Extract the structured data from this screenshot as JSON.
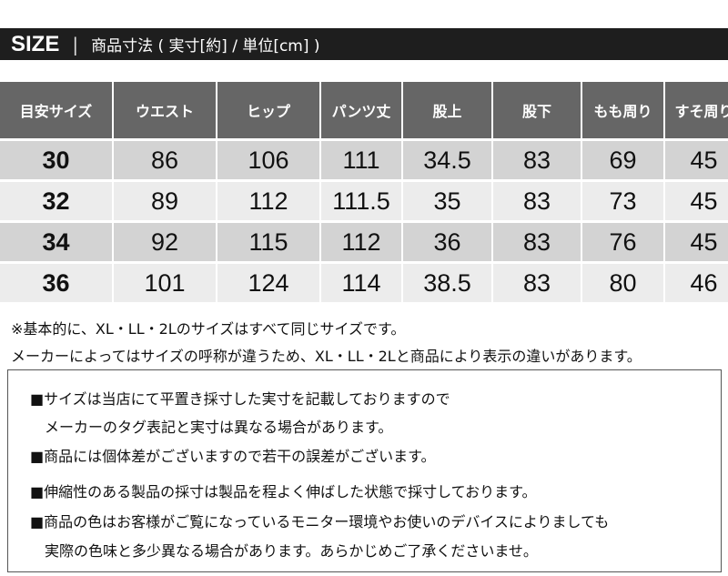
{
  "header": {
    "title": "SIZE",
    "separator": "|",
    "subtitle": "商品寸法 ( 実寸[約] / 単位[cm] )"
  },
  "table": {
    "columns": [
      "目安サイズ",
      "ウエスト",
      "ヒップ",
      "パンツ丈",
      "股上",
      "股下",
      "もも周り",
      "すそ周り"
    ],
    "rows": [
      [
        "30",
        "86",
        "106",
        "111",
        "34.5",
        "83",
        "69",
        "45"
      ],
      [
        "32",
        "89",
        "112",
        "111.5",
        "35",
        "83",
        "73",
        "45"
      ],
      [
        "34",
        "92",
        "115",
        "112",
        "36",
        "83",
        "76",
        "45"
      ],
      [
        "36",
        "101",
        "124",
        "114",
        "38.5",
        "83",
        "80",
        "46"
      ]
    ]
  },
  "notes": [
    "※基本的に、XL・LL・2Lのサイズはすべて同じサイズです。",
    "メーカーによってはサイズの呼称が違うため、XL・LL・2Lと商品により表示の違いがあります。"
  ],
  "disclaimer": {
    "lines": [
      "■サイズは当店にて平置き採寸した実寸を記載しておりますので",
      "メーカーのタグ表記と実寸は異なる場合があります。",
      "■商品には個体差がございますので若干の誤差がございます。",
      "■伸縮性のある製品の採寸は製品を程よく伸ばした状態で採寸しております。",
      "■商品の色はお客様がご覧になっているモニター環境やお使いのデバイスによりましても",
      "実際の色味と多少異なる場合があります。あらかじめご了承くださいませ。"
    ]
  },
  "colors": {
    "title_bar": "#1e1e1e",
    "header_cell": "#666666",
    "row_odd": "#d3d3d3",
    "row_even": "#ececec"
  }
}
